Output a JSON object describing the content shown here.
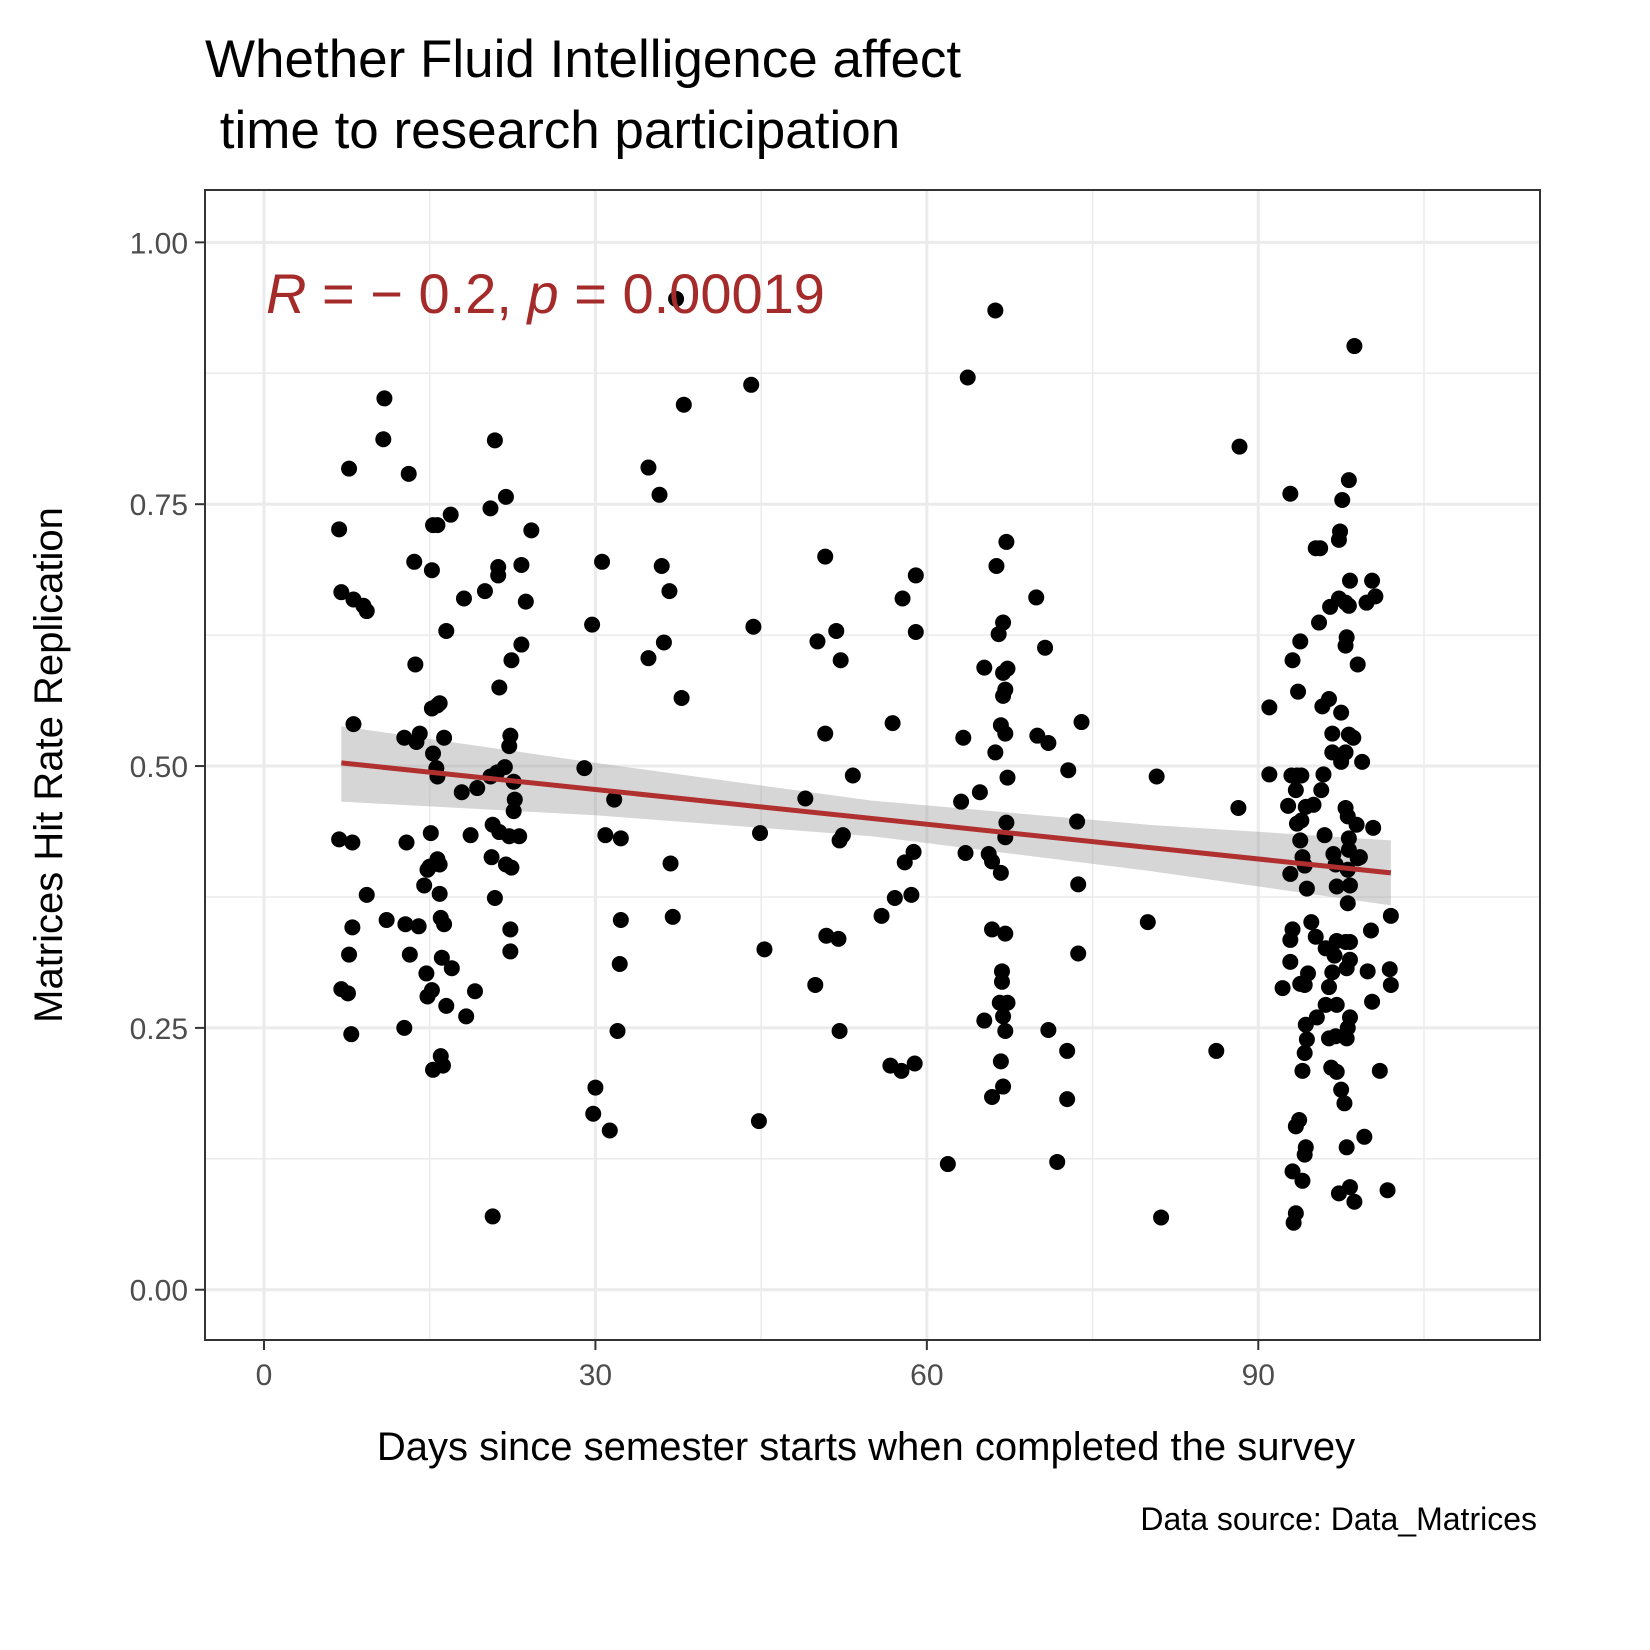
{
  "chart_data": {
    "type": "scatter",
    "title": [
      "Whether Fluid Intelligence affect",
      " time to research participation"
    ],
    "xlabel": "Days since semester starts when completed the survey",
    "ylabel": "Matrices Hit Rate Replication",
    "caption": "Data source: Data_Matrices",
    "annotation": {
      "parts": [
        "R",
        " = − 0.2, ",
        "p",
        " = 0.00019"
      ],
      "italic": [
        true,
        false,
        true,
        false
      ],
      "color": "#a52a2a"
    },
    "xlim": [
      -5.34,
      115.5
    ],
    "ylim": [
      -0.048,
      1.05
    ],
    "xticks": [
      0,
      30,
      60,
      90
    ],
    "yticks": [
      {
        "value": 0,
        "label": "0.00"
      },
      {
        "value": 0.25,
        "label": "0.25"
      },
      {
        "value": 0.5,
        "label": "0.50"
      },
      {
        "value": 0.75,
        "label": "0.75"
      },
      {
        "value": 1,
        "label": "1.00"
      }
    ],
    "xminorticks": [
      15,
      45,
      75,
      105
    ],
    "yminorticks": [
      0.125,
      0.375,
      0.625,
      0.875
    ],
    "grid": true,
    "color": "#000000",
    "fit": {
      "x": [
        7,
        102
      ],
      "values": [
        0.503,
        0.398
      ],
      "color": "#b03030"
    },
    "band": {
      "x": [
        7,
        30,
        55,
        80,
        102
      ],
      "upper": [
        0.538,
        0.503,
        0.467,
        0.444,
        0.429
      ],
      "lower": [
        0.466,
        0.453,
        0.433,
        0.4,
        0.367
      ],
      "color": "#999999"
    },
    "x": [
      6.8,
      7.0,
      6.8,
      7.0,
      7.7,
      8.1,
      8.1,
      8.0,
      8.0,
      7.7,
      7.6,
      7.9,
      9.0,
      9.3,
      9.3,
      10.9,
      10.8,
      11.1,
      13.1,
      13.6,
      13.7,
      12.7,
      13.8,
      14.1,
      12.9,
      12.8,
      14.0,
      13.2,
      12.7,
      15.3,
      15.7,
      15.2,
      16.9,
      16.5,
      15.7,
      15.9,
      15.2,
      15.3,
      16.3,
      15.6,
      15.7,
      15.1,
      15.7,
      15.9,
      15.0,
      14.8,
      14.5,
      15.9,
      16.0,
      16.3,
      16.1,
      17.0,
      14.7,
      15.2,
      14.8,
      16.5,
      18.3,
      16.0,
      16.2,
      15.3,
      18.1,
      17.9,
      19.3,
      18.7,
      19.1,
      20.0,
      20.5,
      20.9,
      21.2,
      21.2,
      21.9,
      21.3,
      20.5,
      21.1,
      21.8,
      20.7,
      21.3,
      20.6,
      21.9,
      20.9,
      20.7,
      22.4,
      22.3,
      22.2,
      22.6,
      22.7,
      22.6,
      22.2,
      23.1,
      22.4,
      22.3,
      22.3,
      23.3,
      23.3,
      23.7,
      24.2,
      29.0,
      29.7,
      30.0,
      29.8,
      30.6,
      31.7,
      30.9,
      32.3,
      32.3,
      32.2,
      32.0,
      31.3,
      34.8,
      35.8,
      36.0,
      36.7,
      36.2,
      34.8,
      37.8,
      36.8,
      37.0,
      37.3,
      38.0,
      44.1,
      44.3,
      44.9,
      45.3,
      44.8,
      49.0,
      49.9,
      50.8,
      50.1,
      50.8,
      50.9,
      51.8,
      52.2,
      52.0,
      52.1,
      52.4,
      52.1,
      53.3,
      56.9,
      55.9,
      57.1,
      58.6,
      56.7,
      57.7,
      58.9,
      57.8,
      59.0,
      59.0,
      58.0,
      58.8,
      61.9,
      63.1,
      63.3,
      63.7,
      63.5,
      64.8,
      66.2,
      65.2,
      66.3,
      66.5,
      66.2,
      67.2,
      66.9,
      66.9,
      67.3,
      67.1,
      66.9,
      66.7,
      67.1,
      67.3,
      67.2,
      67.1,
      65.6,
      65.9,
      66.7,
      65.9,
      67.1,
      66.8,
      66.8,
      67.3,
      66.6,
      66.9,
      65.2,
      67.1,
      66.7,
      66.9,
      65.9,
      69.9,
      70.7,
      70.0,
      71.0,
      74.0,
      72.8,
      73.6,
      73.7,
      73.7,
      71.0,
      72.7,
      72.7,
      71.8,
      80.0,
      80.8,
      81.2,
      86.2,
      88.3,
      88.2,
      91.0,
      91.0,
      92.2,
      92.9,
      93.1,
      92.7,
      93.0,
      93.5,
      93.9,
      92.9,
      93.1,
      92.9,
      92.9,
      93.6,
      93.8,
      93.4,
      93.5,
      93.9,
      94.3,
      93.8,
      94.0,
      94.2,
      94.4,
      93.8,
      94.0,
      93.4,
      93.7,
      93.1,
      93.4,
      93.2,
      94.3,
      94.2,
      94.0,
      94.5,
      94.2,
      94.3,
      94.4,
      94.2,
      94.8,
      95.2,
      95.0,
      95.2,
      95.6,
      95.5,
      95.3,
      95.7,
      95.9,
      95.8,
      96.4,
      96.5,
      96.0,
      96.1,
      96.1,
      96.4,
      96.4,
      96.6,
      96.7,
      96.7,
      96.8,
      97.0,
      97.1,
      97.1,
      96.9,
      96.7,
      97.1,
      97.0,
      97.1,
      97.3,
      97.3,
      97.4,
      97.6,
      97.9,
      97.5,
      97.5,
      97.3,
      97.5,
      97.8,
      98.2,
      98.3,
      98.2,
      98.0,
      97.9,
      98.2,
      98.6,
      97.9,
      97.9,
      98.1,
      98.2,
      98.2,
      98.1,
      98.3,
      98.1,
      97.9,
      98.3,
      98.3,
      98.0,
      98.3,
      98.1,
      98.0,
      98.0,
      98.3,
      98.7,
      98.7,
      99.0,
      98.9,
      99.2,
      99.4,
      99.0,
      99.8,
      99.9,
      99.6,
      100.4,
      100.2,
      100.3,
      100.3,
      100.6,
      101.0,
      101.7,
      101.9,
      102.0,
      102.0
    ],
    "values": [
      0.726,
      0.666,
      0.43,
      0.287,
      0.784,
      0.659,
      0.54,
      0.427,
      0.346,
      0.32,
      0.283,
      0.244,
      0.653,
      0.648,
      0.377,
      0.851,
      0.812,
      0.353,
      0.779,
      0.695,
      0.597,
      0.527,
      0.523,
      0.531,
      0.427,
      0.349,
      0.347,
      0.32,
      0.25,
      0.73,
      0.73,
      0.687,
      0.74,
      0.629,
      0.558,
      0.56,
      0.555,
      0.512,
      0.527,
      0.498,
      0.49,
      0.436,
      0.411,
      0.406,
      0.404,
      0.401,
      0.386,
      0.378,
      0.355,
      0.349,
      0.317,
      0.307,
      0.302,
      0.286,
      0.28,
      0.271,
      0.261,
      0.223,
      0.214,
      0.21,
      0.66,
      0.475,
      0.479,
      0.434,
      0.285,
      0.667,
      0.746,
      0.811,
      0.682,
      0.69,
      0.757,
      0.575,
      0.49,
      0.494,
      0.499,
      0.444,
      0.437,
      0.413,
      0.406,
      0.374,
      0.07,
      0.601,
      0.529,
      0.519,
      0.485,
      0.468,
      0.457,
      0.433,
      0.433,
      0.403,
      0.344,
      0.323,
      0.692,
      0.616,
      0.657,
      0.725,
      0.498,
      0.635,
      0.193,
      0.168,
      0.695,
      0.468,
      0.434,
      0.431,
      0.353,
      0.311,
      0.247,
      0.152,
      0.785,
      0.759,
      0.691,
      0.667,
      0.618,
      0.603,
      0.565,
      0.407,
      0.356,
      0.946,
      0.845,
      0.864,
      0.633,
      0.436,
      0.325,
      0.161,
      0.469,
      0.291,
      0.7,
      0.619,
      0.531,
      0.338,
      0.629,
      0.601,
      0.335,
      0.429,
      0.434,
      0.247,
      0.491,
      0.541,
      0.357,
      0.374,
      0.377,
      0.214,
      0.209,
      0.216,
      0.66,
      0.682,
      0.628,
      0.408,
      0.418,
      0.12,
      0.466,
      0.527,
      0.871,
      0.417,
      0.475,
      0.935,
      0.594,
      0.691,
      0.626,
      0.513,
      0.714,
      0.637,
      0.589,
      0.593,
      0.573,
      0.567,
      0.539,
      0.531,
      0.489,
      0.446,
      0.432,
      0.416,
      0.409,
      0.398,
      0.344,
      0.34,
      0.304,
      0.294,
      0.274,
      0.274,
      0.261,
      0.257,
      0.247,
      0.218,
      0.194,
      0.184,
      0.661,
      0.613,
      0.529,
      0.522,
      0.542,
      0.496,
      0.447,
      0.387,
      0.321,
      0.248,
      0.228,
      0.182,
      0.122,
      0.351,
      0.49,
      0.069,
      0.228,
      0.805,
      0.46,
      0.556,
      0.492,
      0.288,
      0.76,
      0.601,
      0.462,
      0.491,
      0.491,
      0.491,
      0.397,
      0.344,
      0.334,
      0.313,
      0.571,
      0.619,
      0.477,
      0.445,
      0.448,
      0.461,
      0.429,
      0.413,
      0.405,
      0.383,
      0.292,
      0.209,
      0.156,
      0.162,
      0.113,
      0.073,
      0.064,
      0.136,
      0.129,
      0.104,
      0.302,
      0.291,
      0.253,
      0.239,
      0.226,
      0.351,
      0.337,
      0.463,
      0.708,
      0.708,
      0.637,
      0.26,
      0.477,
      0.492,
      0.557,
      0.564,
      0.652,
      0.434,
      0.326,
      0.272,
      0.289,
      0.24,
      0.212,
      0.531,
      0.513,
      0.416,
      0.406,
      0.385,
      0.333,
      0.319,
      0.303,
      0.272,
      0.242,
      0.208,
      0.66,
      0.716,
      0.724,
      0.754,
      0.656,
      0.551,
      0.504,
      0.092,
      0.191,
      0.178,
      0.773,
      0.677,
      0.653,
      0.623,
      0.615,
      0.53,
      0.527,
      0.513,
      0.46,
      0.452,
      0.431,
      0.42,
      0.401,
      0.386,
      0.369,
      0.332,
      0.332,
      0.315,
      0.307,
      0.26,
      0.25,
      0.24,
      0.136,
      0.098,
      0.084,
      0.901,
      0.597,
      0.444,
      0.413,
      0.504,
      0.412,
      0.656,
      0.304,
      0.146,
      0.441,
      0.343,
      0.275,
      0.677,
      0.662,
      0.209,
      0.095,
      0.306,
      0.291,
      0.357
    ]
  }
}
